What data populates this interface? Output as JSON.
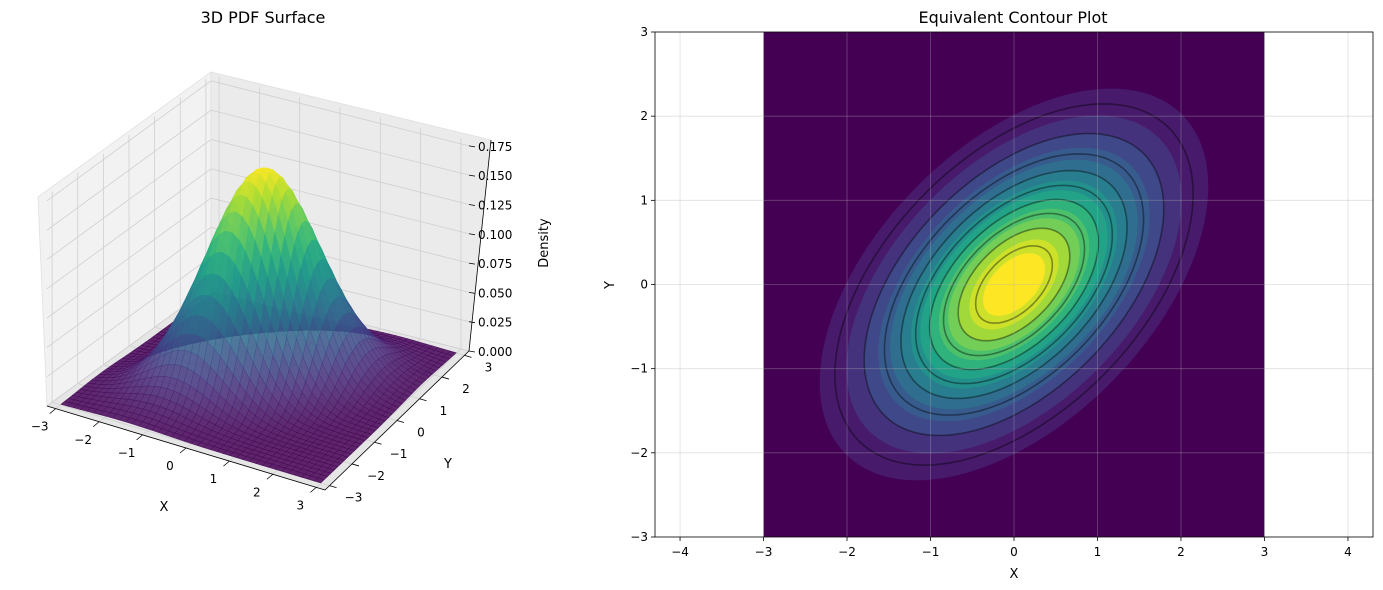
{
  "chart_data": [
    {
      "type": "surface3d",
      "title": "3D PDF Surface",
      "xlabel": "X",
      "ylabel": "Y",
      "zlabel": "Density",
      "xticks": [
        -3,
        -2,
        -1,
        0,
        1,
        2,
        3
      ],
      "yticks": [
        -3,
        -2,
        -1,
        0,
        1,
        2,
        3
      ],
      "zticks": [
        "0.000",
        "0.025",
        "0.050",
        "0.075",
        "0.100",
        "0.125",
        "0.150",
        "0.175"
      ],
      "xlim": [
        -3.2,
        3.2
      ],
      "ylim": [
        -3.2,
        3.2
      ],
      "zlim": [
        0,
        0.18
      ],
      "distribution": {
        "mean": [
          0,
          0
        ],
        "sigma_x": 1,
        "sigma_y": 1,
        "rho": 0.5
      },
      "peak_density": 0.184,
      "colormap": "viridis",
      "grid": true
    },
    {
      "type": "contour",
      "title": "Equivalent Contour Plot",
      "xlabel": "X",
      "ylabel": "Y",
      "xticks": [
        -4,
        -3,
        -2,
        -1,
        0,
        1,
        2,
        3,
        4
      ],
      "yticks": [
        -3,
        -2,
        -1,
        0,
        1,
        2,
        3
      ],
      "xlim": [
        -4.3,
        4.3
      ],
      "ylim": [
        -3,
        3
      ],
      "data_extent": {
        "x": [
          -3,
          3
        ],
        "y": [
          -3,
          3
        ]
      },
      "distribution": {
        "mean": [
          0,
          0
        ],
        "sigma_x": 1,
        "sigma_y": 1,
        "rho": 0.5
      },
      "filled_levels": 15,
      "line_levels": 10,
      "colormap": "viridis",
      "grid": true
    }
  ]
}
